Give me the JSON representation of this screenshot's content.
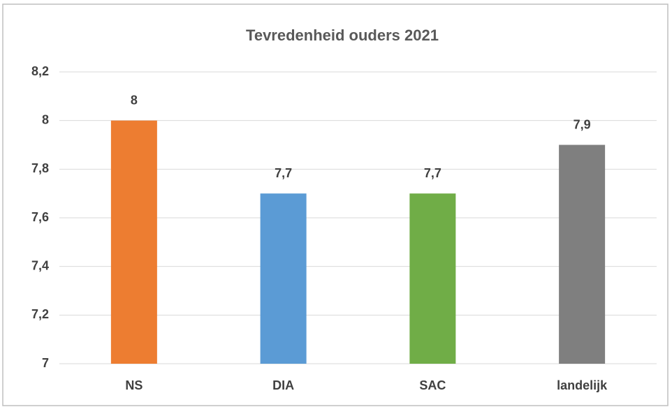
{
  "chart_data": {
    "type": "bar",
    "title": "Tevredenheid ouders 2021",
    "categories": [
      "NS",
      "DIA",
      "SAC",
      "landelijk"
    ],
    "values": [
      8,
      7.7,
      7.7,
      7.9
    ],
    "value_labels": [
      "8",
      "7,7",
      "7,7",
      "7,9"
    ],
    "colors": [
      "#ed7d31",
      "#5b9bd5",
      "#70ad47",
      "#7f7f7f"
    ],
    "ylim": [
      7,
      8.2
    ],
    "yticks": [
      7,
      {
        "value": 7.2,
        "label": "7,2"
      },
      {
        "value": 7.4,
        "label": "7,4"
      },
      {
        "value": 7.6,
        "label": "7,6"
      },
      {
        "value": 7.8,
        "label": "7,8"
      },
      8,
      {
        "value": 8.2,
        "label": "8,2"
      }
    ],
    "grid": true
  }
}
